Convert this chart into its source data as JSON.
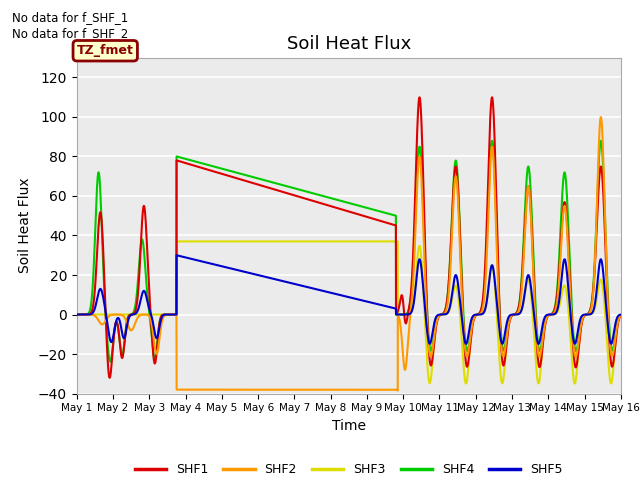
{
  "title": "Soil Heat Flux",
  "xlabel": "Time",
  "ylabel": "Soil Heat Flux",
  "ylim": [
    -40,
    130
  ],
  "yticks": [
    -40,
    -20,
    0,
    20,
    40,
    60,
    80,
    100,
    120
  ],
  "background_color": "#ebebeb",
  "no_data_text": [
    "No data for f_SHF_1",
    "No data for f_SHF_2"
  ],
  "tz_label": "TZ_fmet",
  "colors": {
    "SHF1": "#dd0000",
    "SHF2": "#ff9900",
    "SHF3": "#dddd00",
    "SHF4": "#00cc00",
    "SHF5": "#0000cc"
  },
  "legend_labels": [
    "SHF1",
    "SHF2",
    "SHF3",
    "SHF4",
    "SHF5"
  ],
  "xtick_labels": [
    "May 1",
    "May 2",
    "May 3",
    "May 4",
    "May 5",
    "May 6",
    "May 7",
    "May 8",
    "May 9",
    "May 10",
    "May 11",
    "May 12",
    "May 13",
    "May 14",
    "May 15",
    "May 16"
  ]
}
